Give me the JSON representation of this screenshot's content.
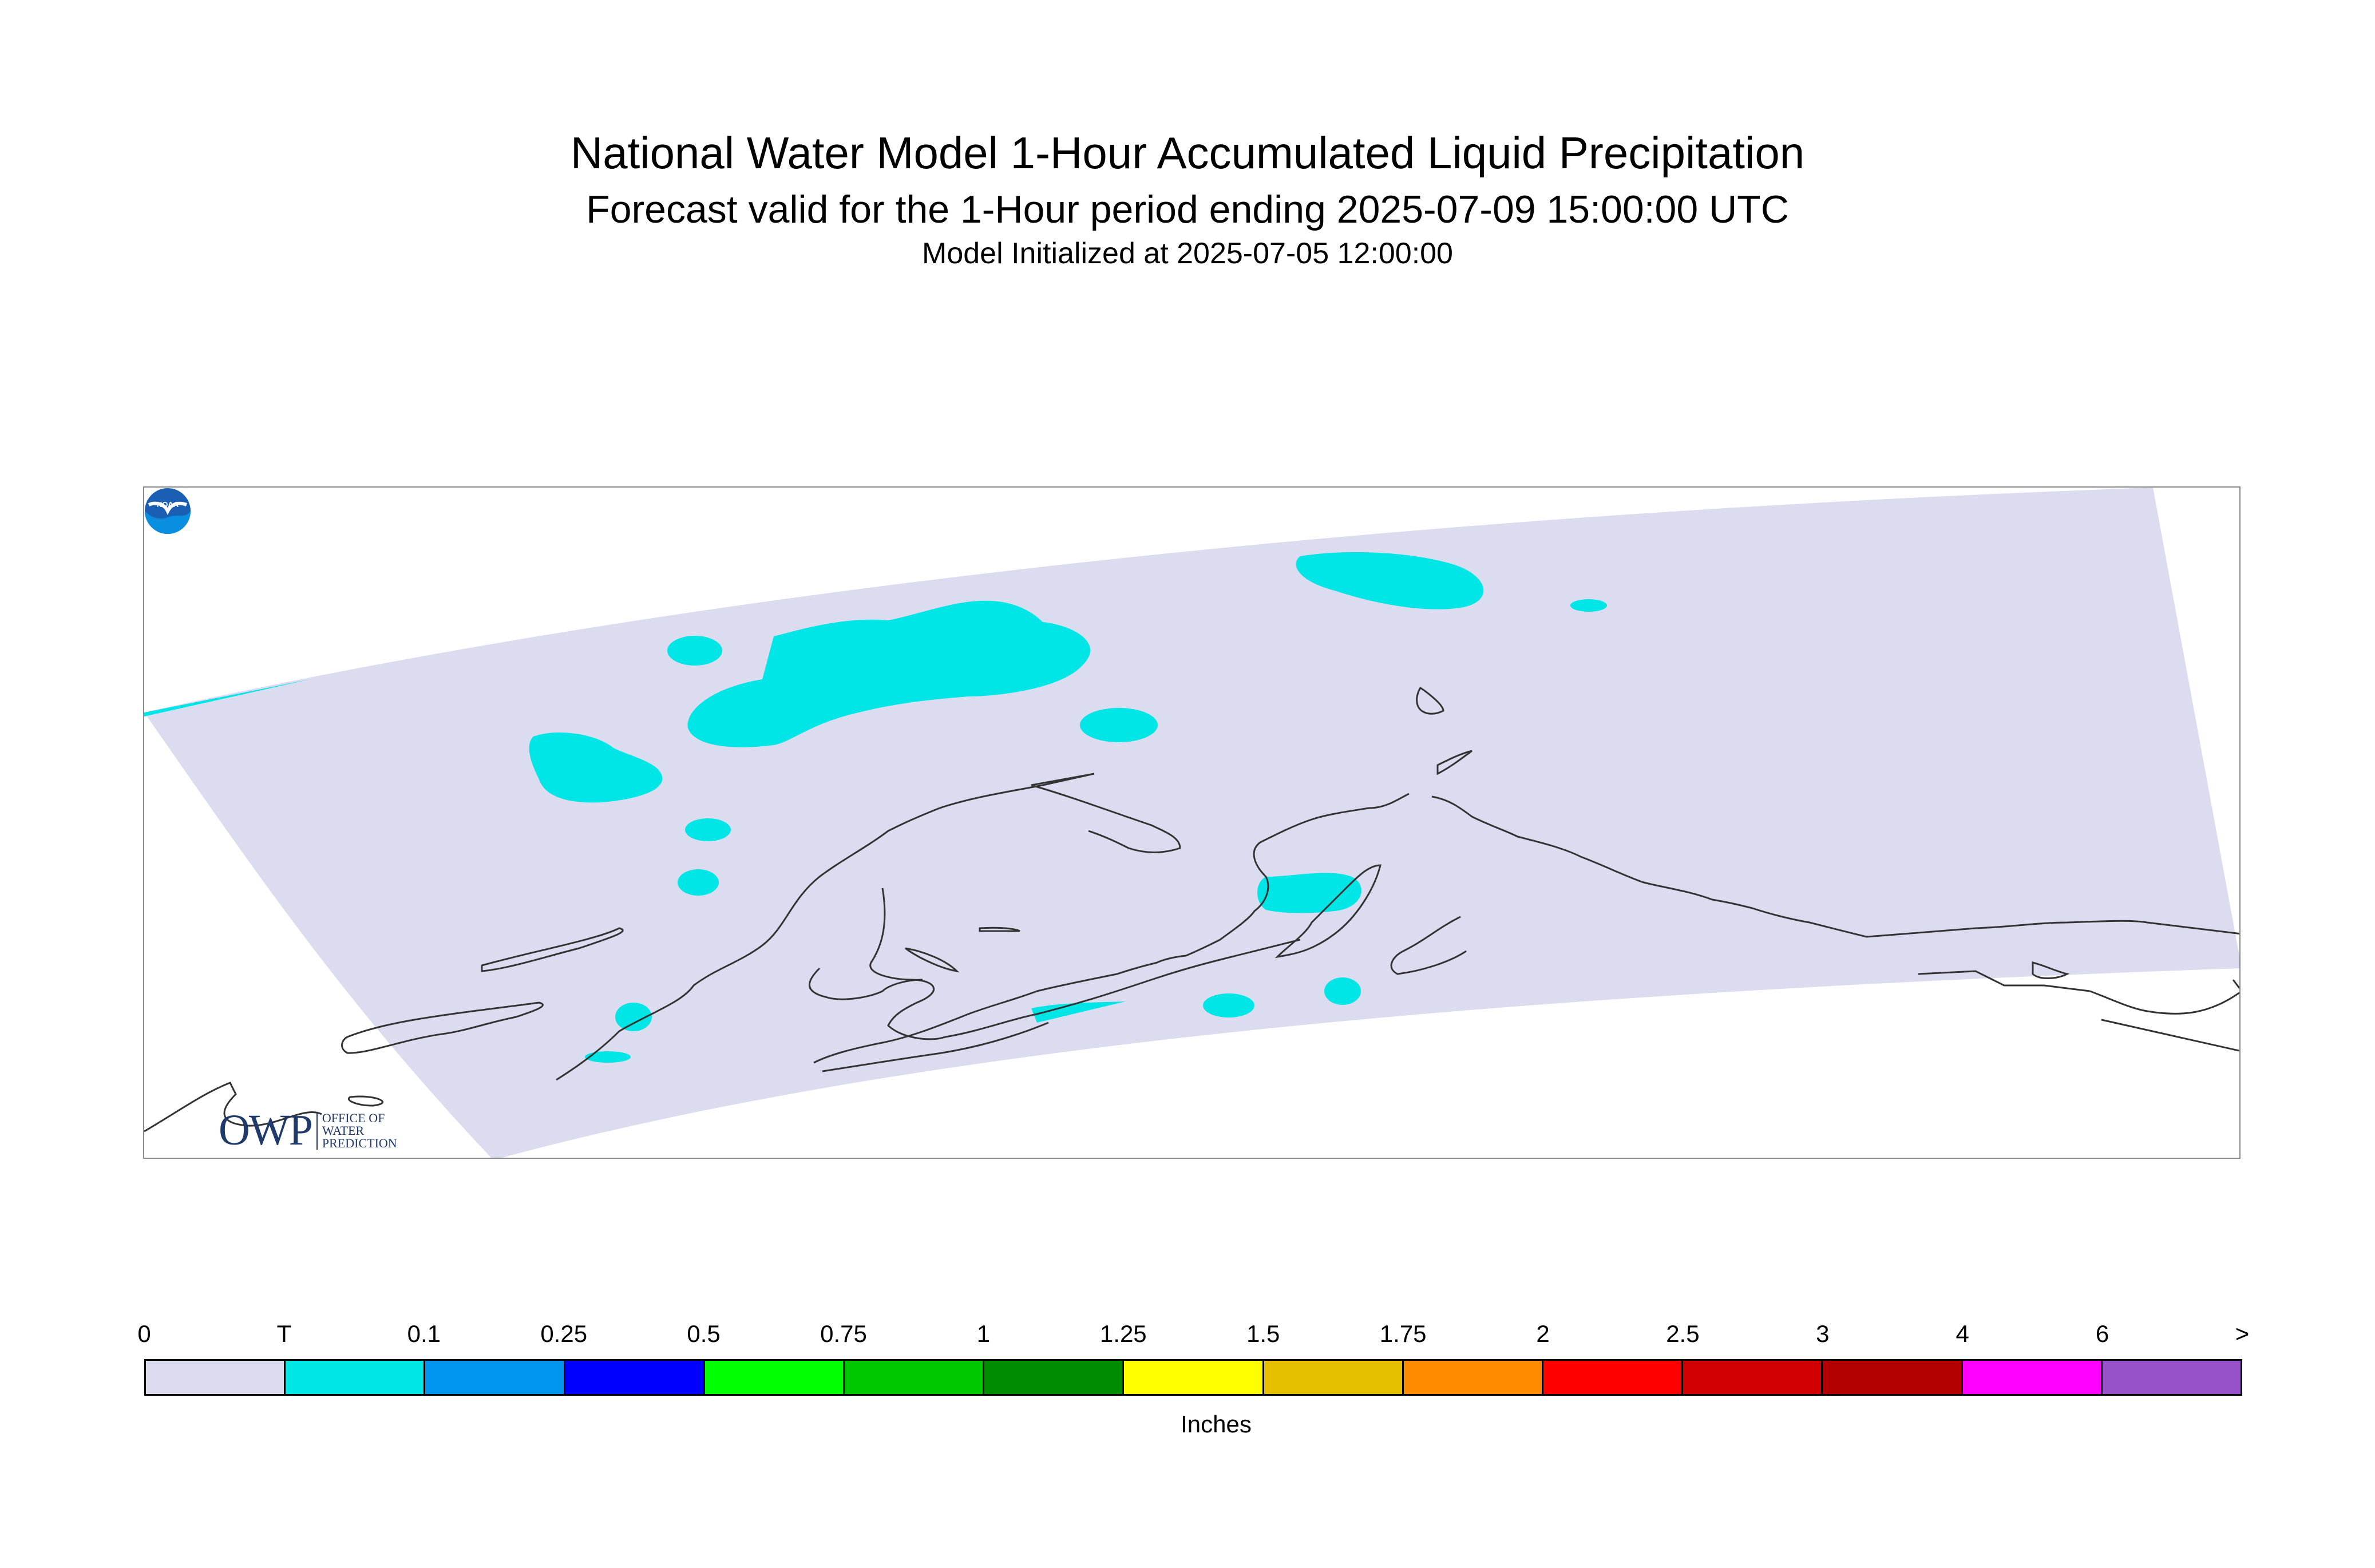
{
  "title": {
    "main": "National Water Model 1-Hour Accumulated Liquid Precipitation",
    "forecast": "Forecast valid for the 1-Hour period ending 2025-07-09 15:00:00 UTC",
    "init": "Model Initialized at 2025-07-05 12:00:00"
  },
  "logos": {
    "owp": "OWP",
    "owp_sub": [
      "OFFICE OF",
      "WATER",
      "PREDICTION"
    ],
    "noaa": "NOAA"
  },
  "map": {
    "region": "Alaska",
    "domain_color": "#dcdcf0",
    "precip_color": "#00e6e6",
    "coast_color": "#333333"
  },
  "legend": {
    "labels": [
      "0",
      "T",
      "0.1",
      "0.25",
      "0.5",
      "0.75",
      "1",
      "1.25",
      "1.5",
      "1.75",
      "2",
      "2.5",
      "3",
      "4",
      "6",
      ">"
    ],
    "colors": [
      "#dcdcf0",
      "#00e6e6",
      "#0096f0",
      "#0000ff",
      "#00ff00",
      "#00c800",
      "#008c00",
      "#ffff00",
      "#e6c000",
      "#ff8c00",
      "#ff0000",
      "#d20000",
      "#b40000",
      "#ff00ff",
      "#9650c8"
    ],
    "units": "Inches"
  }
}
